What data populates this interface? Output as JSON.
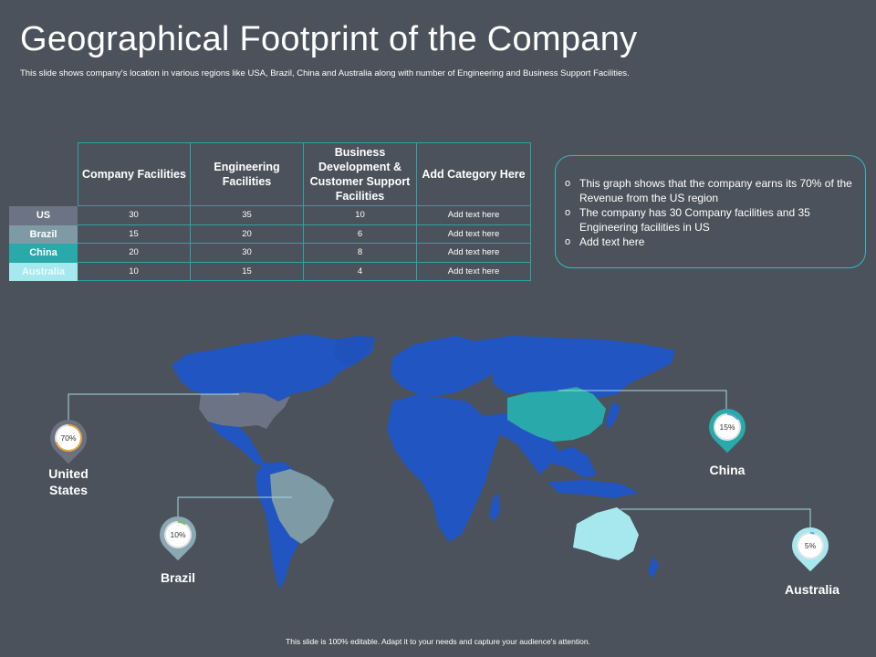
{
  "slide": {
    "title": "Geographical Footprint of the Company",
    "subtitle": "This slide shows company's location in various regions like USA, Brazil, China and Australia along with number of Engineering and Business Support Facilities.",
    "footer": "This slide is 100% editable. Adapt it to your needs and capture your audience's attention."
  },
  "table": {
    "headers": [
      "Company Facilities",
      "Engineering Facilities",
      "Business Development & Customer Support Facilities",
      "Add Category Here"
    ],
    "rows": [
      {
        "label": "US",
        "values": [
          "30",
          "35",
          "10",
          "Add text here"
        ]
      },
      {
        "label": "Brazil",
        "values": [
          "15",
          "20",
          "6",
          "Add text here"
        ]
      },
      {
        "label": "China",
        "values": [
          "20",
          "30",
          "8",
          "Add text here"
        ]
      },
      {
        "label": "Australia",
        "values": [
          "10",
          "15",
          "4",
          "Add text here"
        ]
      }
    ]
  },
  "info": {
    "bullets": [
      "This graph shows that the company earns its 70% of the Revenue  from the US region",
      "The company has 30 Company facilities and 35 Engineering facilities in US",
      "Add text here"
    ],
    "marker": "o"
  },
  "pins": {
    "us": {
      "percent_label": "70%",
      "percent": 70,
      "country": "United States",
      "color": "#6b7180"
    },
    "brazil": {
      "percent_label": "10%",
      "percent": 10,
      "country": "Brazil",
      "color": "#8aa9b2"
    },
    "china": {
      "percent_label": "15%",
      "percent": 15,
      "country": "China",
      "color": "#2aa9aa"
    },
    "australia": {
      "percent_label": "5%",
      "percent": 5,
      "country": "Australia",
      "color": "#a7e8ef"
    }
  },
  "colors": {
    "background": "#4b525b",
    "map_blue": "#2155c2",
    "us_fill": "#6c7384",
    "brazil_fill": "#7d9aa5",
    "china_fill": "#2aa9aa",
    "australia_fill": "#a7e8ef",
    "accent_teal": "#2aa5a8"
  }
}
